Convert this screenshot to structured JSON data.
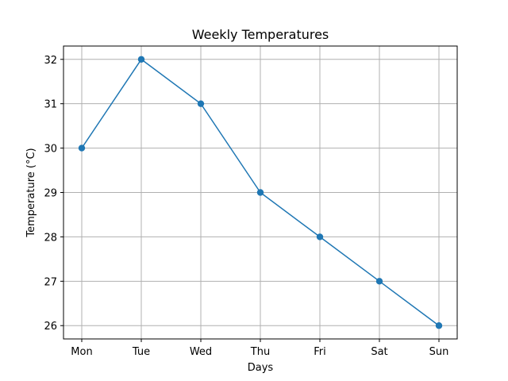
{
  "chart_data": {
    "type": "line",
    "title": "Weekly Temperatures",
    "xlabel": "Days",
    "ylabel": "Temperature (°C)",
    "categories": [
      "Mon",
      "Tue",
      "Wed",
      "Thu",
      "Fri",
      "Sat",
      "Sun"
    ],
    "series": [
      {
        "values": [
          30,
          32,
          31,
          29,
          28,
          27,
          26
        ],
        "color": "#1f77b4",
        "marker": "circle"
      }
    ],
    "yticks": [
      "26",
      "27",
      "28",
      "29",
      "30",
      "31",
      "32"
    ],
    "ylim": [
      25.7,
      32.3
    ],
    "grid": true,
    "legend": "none"
  }
}
